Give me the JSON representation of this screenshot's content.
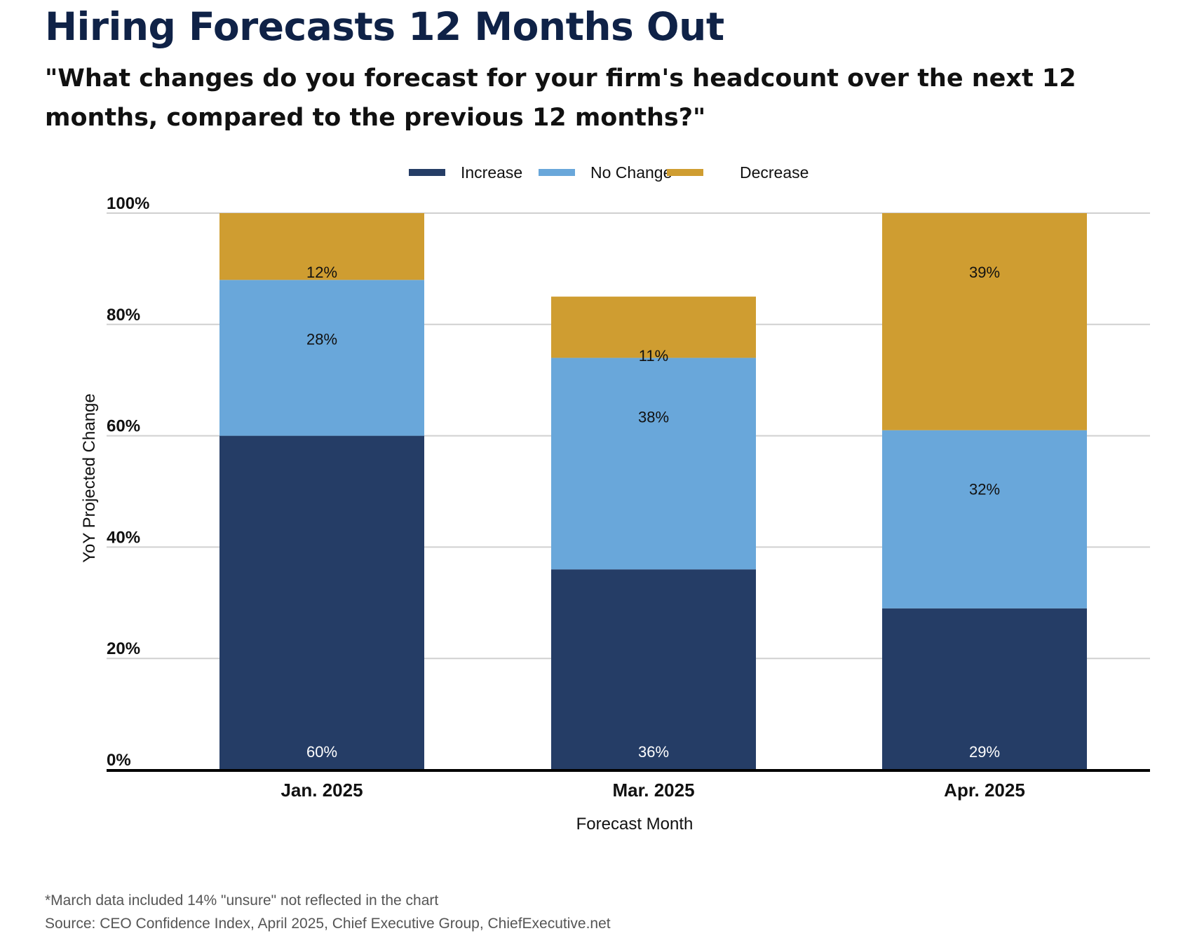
{
  "title": "Hiring Forecasts 12 Months Out",
  "subtitle": "\"What changes do you forecast for your firm's headcount over the next 12 months, compared to the previous 12 months?\"",
  "footnote": "*March data included 14% \"unsure\" not reflected in the chart",
  "source": "Source: CEO Confidence Index, April 2025, Chief Executive Group, ChiefExecutive.net",
  "chart_data": {
    "type": "bar",
    "stacked": true,
    "categories": [
      "Jan. 2025",
      "Mar. 2025",
      "Apr. 2025"
    ],
    "series": [
      {
        "name": "Increase",
        "values": [
          60,
          36,
          29
        ],
        "labels": [
          "60%",
          "36%",
          "29%"
        ],
        "color": "#253d66",
        "label_color": "#ffffff"
      },
      {
        "name": "No Change",
        "values": [
          28,
          38,
          32
        ],
        "labels": [
          "28%",
          "38%",
          "32%"
        ],
        "color": "#69a7da",
        "label_color": "#111111"
      },
      {
        "name": "Decrease",
        "values": [
          12,
          11,
          39
        ],
        "labels": [
          "12%",
          "11%",
          "39%"
        ],
        "color": "#cf9d31",
        "label_color": "#111111"
      }
    ],
    "xlabel": "Forecast Month",
    "ylabel": "YoY Projected Change",
    "ylim": [
      0,
      100
    ],
    "yticks": [
      0,
      20,
      40,
      60,
      80,
      100
    ],
    "ytick_labels": [
      "0%",
      "20%",
      "40%",
      "60%",
      "80%",
      "100%"
    ],
    "grid": true,
    "legend_position": "top-center"
  }
}
